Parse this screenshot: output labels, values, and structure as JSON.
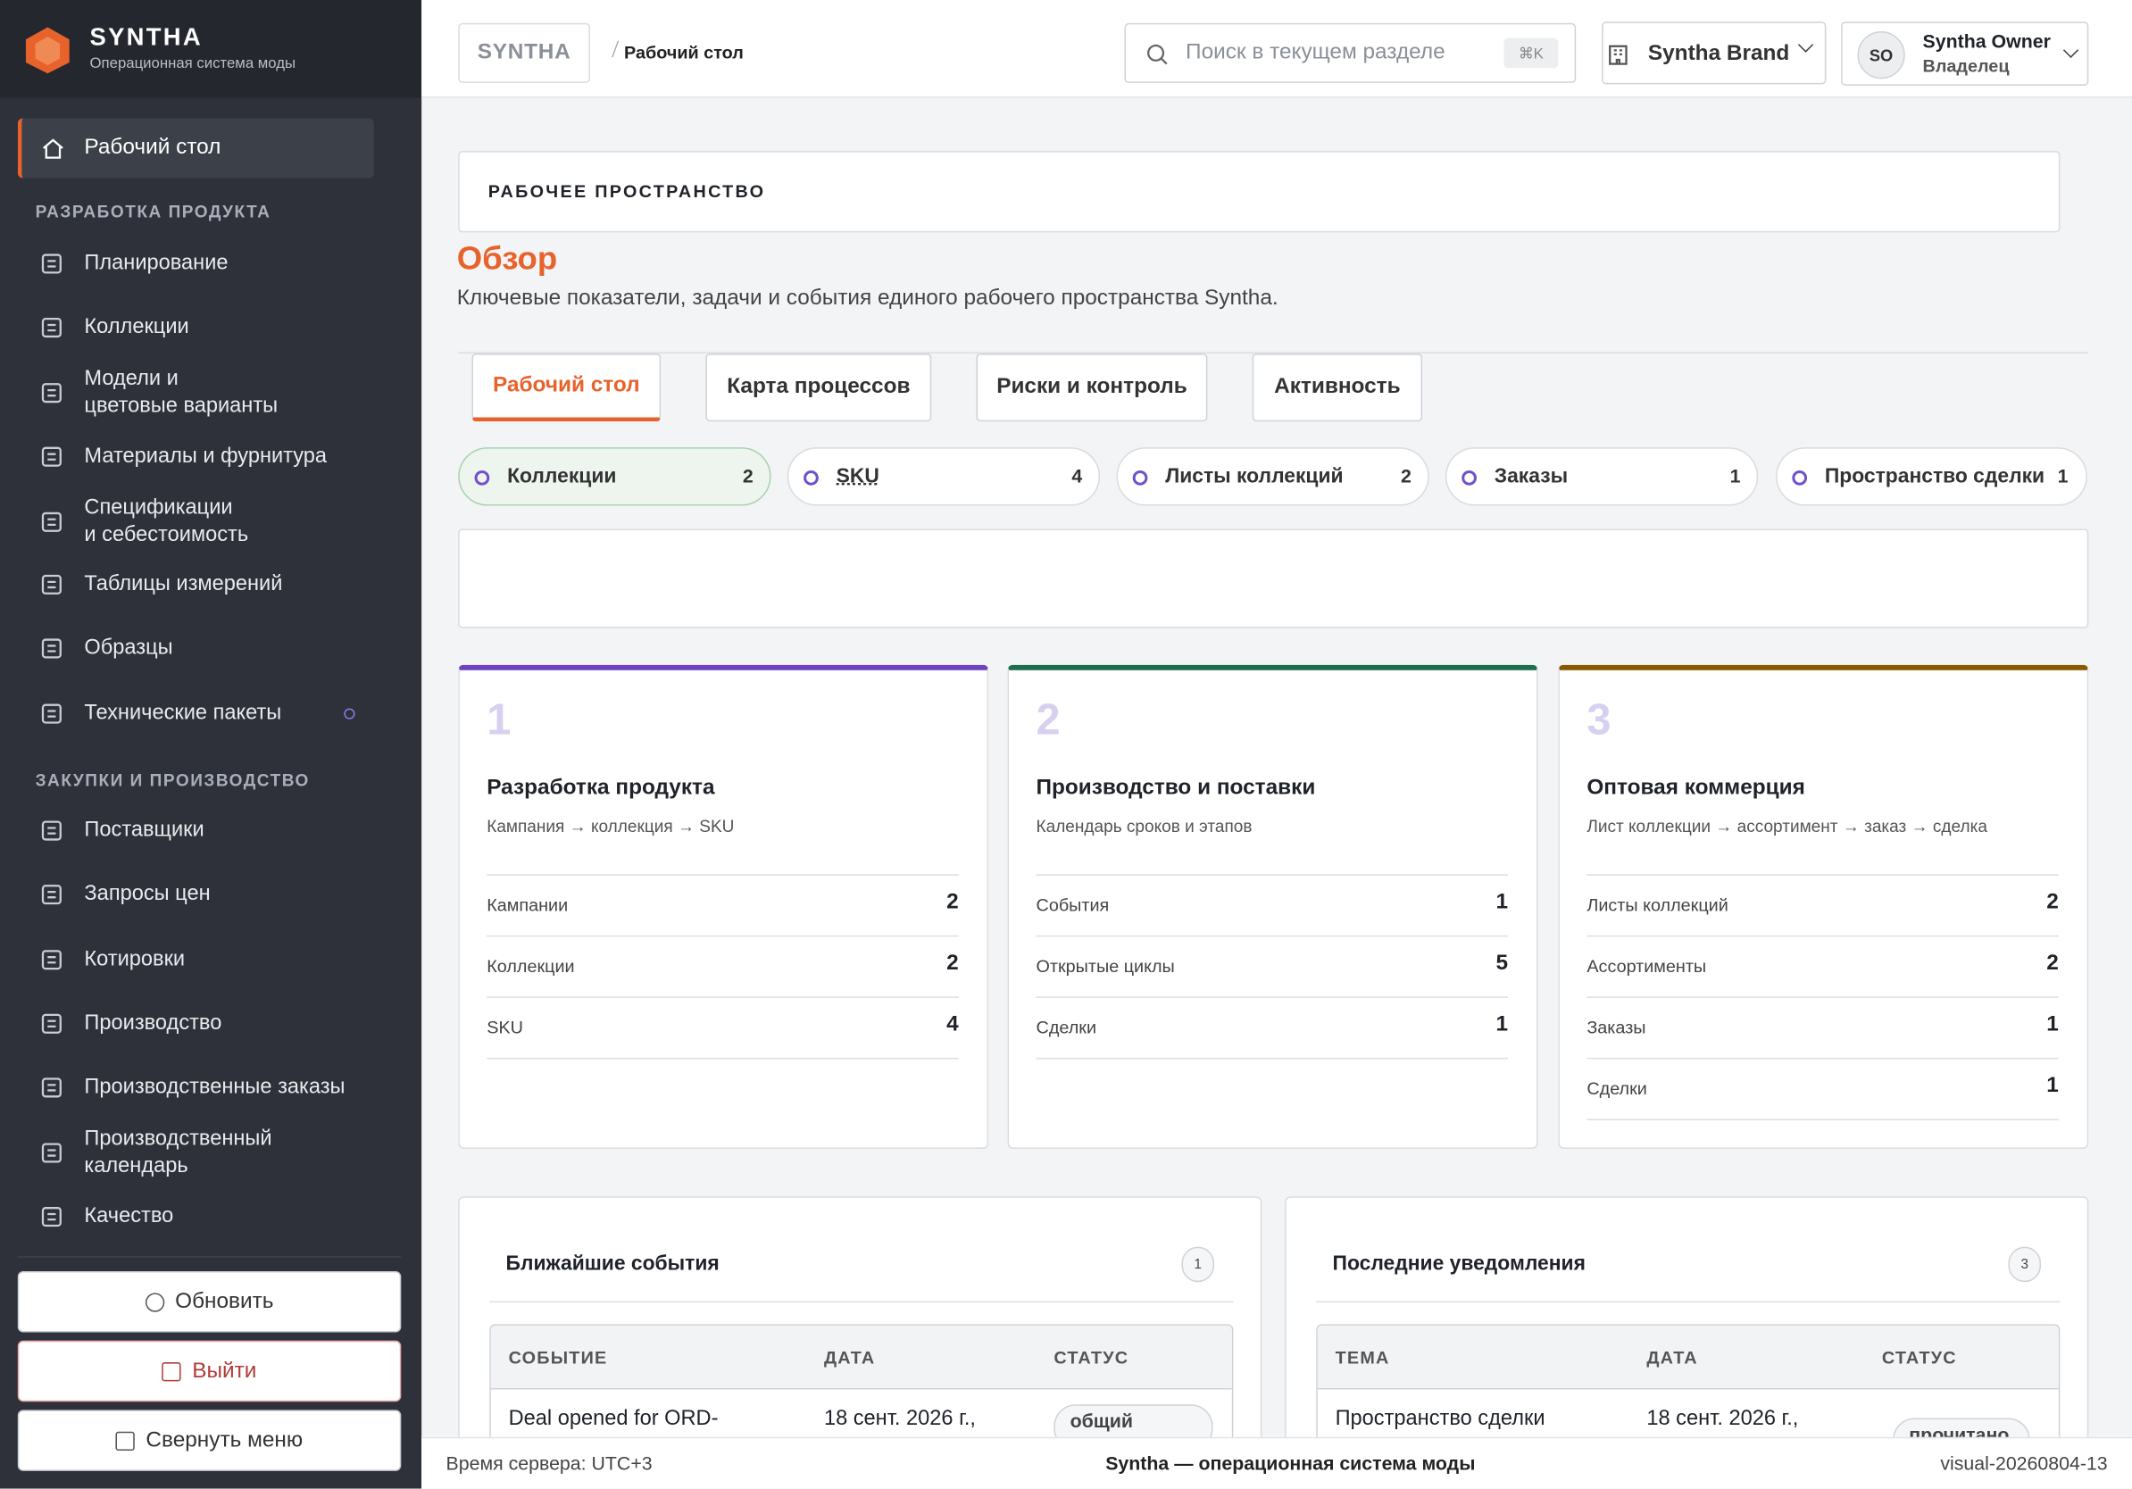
{
  "brand": {
    "name": "SYNTHA",
    "tagline": "Операционная система моды"
  },
  "sidebar": {
    "home": "Рабочий стол",
    "sections": [
      {
        "title": "РАЗРАБОТКА ПРОДУКТА",
        "items": [
          "Планирование",
          "Коллекции",
          "Модели и\nцветовые варианты",
          "Материалы и фурнитура",
          "Спецификации\nи себестоимость",
          "Таблицы измерений",
          "Образцы",
          "Технические пакеты"
        ]
      },
      {
        "title": "ЗАКУПКИ И ПРОИЗВОДСТВО",
        "items": [
          "Поставщики",
          "Запросы цен",
          "Котировки",
          "Производство",
          "Производственные заказы",
          "Производственный\nкалендарь",
          "Качество"
        ]
      }
    ],
    "buttons": [
      "Обновить",
      "Выйти",
      "Свернуть меню"
    ]
  },
  "topbar": {
    "crumb_root": "SYNTHA",
    "crumb": "Рабочий стол",
    "search_placeholder": "Поиск в текущем разделе",
    "shortcut": "⌘K",
    "brand_select": "Syntha Brand",
    "user_initials": "SO",
    "user_name": "Syntha Owner",
    "user_role": "Владелец"
  },
  "header": {
    "eyebrow": "РАБОЧЕЕ ПРОСТРАНСТВО",
    "title": "Обзор",
    "subtitle": "Ключевые показатели, задачи и события единого рабочего пространства Syntha."
  },
  "tabs": [
    "Рабочий стол",
    "Карта процессов",
    "Риски и контроль",
    "Активность"
  ],
  "chips": [
    {
      "label": "Коллекции",
      "count": 2
    },
    {
      "label": "SKU",
      "count": 4
    },
    {
      "label": "Листы коллекций",
      "count": 2
    },
    {
      "label": "Заказы",
      "count": 1
    },
    {
      "label": "Пространство сделки",
      "count": 1
    }
  ],
  "cards": [
    {
      "number": 1,
      "title": "Разработка продукта",
      "subtitle": "Кампания → коллекция → SKU",
      "rows": [
        [
          "Кампании",
          2
        ],
        [
          "Коллекции",
          2
        ],
        [
          "SKU",
          4
        ]
      ]
    },
    {
      "number": 2,
      "title": "Производство и поставки",
      "subtitle": "Календарь сроков и этапов",
      "rows": [
        [
          "События",
          1
        ],
        [
          "Открытые циклы",
          5
        ],
        [
          "Сделки",
          1
        ]
      ]
    },
    {
      "number": 3,
      "title": "Оптовая коммерция",
      "subtitle": "Лист коллекции → ассортимент → заказ → сделка",
      "rows": [
        [
          "Листы коллекций",
          2
        ],
        [
          "Ассортименты",
          2
        ],
        [
          "Заказы",
          1
        ],
        [
          "Сделки",
          1
        ]
      ]
    }
  ],
  "panels": [
    {
      "title": "Ближайшие события",
      "count": 1,
      "columns": [
        "СОБЫТИЕ",
        "ДАТА",
        "СТАТУС"
      ],
      "rows": [
        [
          "Deal opened for ORD-",
          "18 сент. 2026 г.,",
          "общий"
        ]
      ]
    },
    {
      "title": "Последние уведомления",
      "count": 3,
      "columns": [
        "ТЕМА",
        "ДАТА",
        "СТАТУС"
      ],
      "rows": [
        [
          "Пространство сделки",
          "18 сент. 2026 г.,",
          "прочитано"
        ]
      ]
    }
  ],
  "footer": {
    "left": "Время сервера: UTC+3",
    "center": "Syntha — операционная система моды",
    "right": "visual-20260804-13"
  }
}
